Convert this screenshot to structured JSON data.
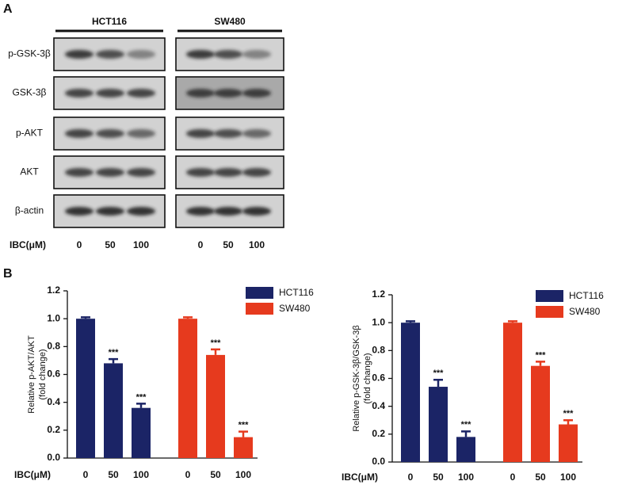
{
  "panels": {
    "a": "A",
    "b": "B"
  },
  "blots": {
    "cell_lines": [
      "HCT116",
      "SW480"
    ],
    "proteins": [
      "p-GSK-3β",
      "GSK-3β",
      "p-AKT",
      "AKT",
      "β-actin"
    ],
    "dose_label": "IBC(μM)",
    "doses": [
      "0",
      "50",
      "100"
    ]
  },
  "chart_data": [
    {
      "type": "bar",
      "ylabel": [
        "Relative p-AKT/AKT",
        "(fold change)"
      ],
      "xlabel": "IBC(μM)",
      "categories": [
        "0",
        "50",
        "100"
      ],
      "series": [
        {
          "name": "HCT116",
          "color": "#1b2466",
          "values": [
            1.0,
            0.68,
            0.36
          ],
          "errors": [
            0.01,
            0.03,
            0.03
          ],
          "significance": [
            null,
            "***",
            "***"
          ]
        },
        {
          "name": "SW480",
          "color": "#e63a1e",
          "values": [
            1.0,
            0.74,
            0.15
          ],
          "errors": [
            0.01,
            0.04,
            0.04
          ],
          "significance": [
            null,
            "***",
            "***"
          ]
        }
      ],
      "ylim": [
        0,
        1.2
      ],
      "yticks": [
        {
          "value": 0,
          "label": "0.0"
        },
        0.2,
        0.4,
        0.6,
        0.8,
        {
          "value": 1,
          "label": "1.0"
        },
        1.2
      ],
      "legend": "top-right"
    },
    {
      "type": "bar",
      "ylabel": [
        "Relative p-GSK-3β/GSK-3β",
        "(fold change)"
      ],
      "xlabel": "IBC(μM)",
      "categories": [
        "0",
        "50",
        "100"
      ],
      "series": [
        {
          "name": "HCT116",
          "color": "#1b2466",
          "values": [
            1.0,
            0.54,
            0.18
          ],
          "errors": [
            0.01,
            0.05,
            0.04
          ],
          "significance": [
            null,
            "***",
            "***"
          ]
        },
        {
          "name": "SW480",
          "color": "#e63a1e",
          "values": [
            1.0,
            0.69,
            0.27
          ],
          "errors": [
            0.01,
            0.03,
            0.03
          ],
          "significance": [
            null,
            "***",
            "***"
          ]
        }
      ],
      "ylim": [
        0,
        1.2
      ],
      "yticks": [
        {
          "value": 0,
          "label": "0.0"
        },
        0.2,
        0.4,
        0.6,
        0.8,
        {
          "value": 1,
          "label": "1.0"
        },
        1.2
      ],
      "legend": "top-right"
    }
  ]
}
